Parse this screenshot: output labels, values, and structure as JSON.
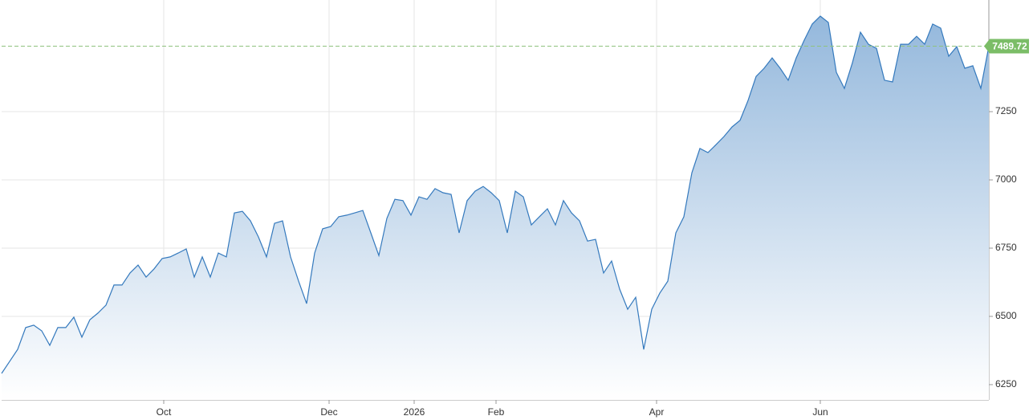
{
  "chart_data": {
    "type": "area",
    "values": [
      6291,
      6335,
      6379,
      6459,
      6468,
      6447,
      6394,
      6459,
      6459,
      6497,
      6424,
      6488,
      6512,
      6541,
      6615,
      6615,
      6659,
      6688,
      6644,
      6674,
      6712,
      6718,
      6732,
      6747,
      6644,
      6718,
      6644,
      6732,
      6718,
      6879,
      6885,
      6850,
      6791,
      6718,
      6841,
      6850,
      6718,
      6629,
      6547,
      6732,
      6821,
      6829,
      6865,
      6871,
      6879,
      6888,
      6806,
      6723,
      6859,
      6929,
      6924,
      6871,
      6938,
      6929,
      6968,
      6953,
      6947,
      6806,
      6924,
      6959,
      6976,
      6953,
      6924,
      6806,
      6959,
      6938,
      6835,
      6865,
      6894,
      6835,
      6924,
      6879,
      6850,
      6776,
      6782,
      6659,
      6703,
      6600,
      6526,
      6570,
      6379,
      6526,
      6585,
      6629,
      6806,
      6865,
      7026,
      7115,
      7100,
      7129,
      7159,
      7194,
      7218,
      7291,
      7379,
      7409,
      7447,
      7409,
      7365,
      7447,
      7512,
      7571,
      7600,
      7577,
      7394,
      7335,
      7429,
      7541,
      7497,
      7482,
      7365,
      7359,
      7497,
      7497,
      7526,
      7497,
      7571,
      7556,
      7453,
      7488,
      7409,
      7418,
      7335,
      7489.72
    ],
    "color": "#3479bd",
    "xlim": [
      0,
      123
    ],
    "xticks": [
      {
        "value": 20.2,
        "label": "Oct"
      },
      {
        "value": 40.8,
        "label": "Dec"
      },
      {
        "value": 51.4,
        "label": "2026"
      },
      {
        "value": 61.6,
        "label": "Feb"
      },
      {
        "value": 81.6,
        "label": "Apr"
      },
      {
        "value": 102,
        "label": "Jun"
      }
    ],
    "ylim": [
      6194,
      7659
    ],
    "yticks": [
      6250,
      6500,
      6750,
      7000,
      7250
    ],
    "current_price": 7489.72,
    "grid": true
  }
}
